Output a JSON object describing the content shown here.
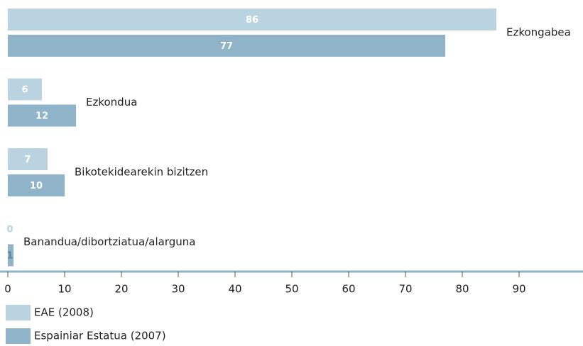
{
  "chart_data": {
    "type": "bar",
    "orientation": "horizontal",
    "categories": [
      "Ezkongabea",
      "Ezkondua",
      "Bikotekidearekin bizitzen",
      "Banandua/dibortziatua/alarguna"
    ],
    "series": [
      {
        "name": "EAE (2008)",
        "color": "#b9d3e0",
        "values": [
          86,
          6,
          7,
          0
        ]
      },
      {
        "name": "Espainiar Estatua (2007)",
        "color": "#8fb3c8",
        "values": [
          77,
          12,
          10,
          1
        ]
      }
    ],
    "xlim": [
      0,
      101.25
    ],
    "xticks": [
      0,
      10,
      20,
      30,
      40,
      50,
      60,
      70,
      80,
      90
    ],
    "legend": "bottom-left"
  }
}
